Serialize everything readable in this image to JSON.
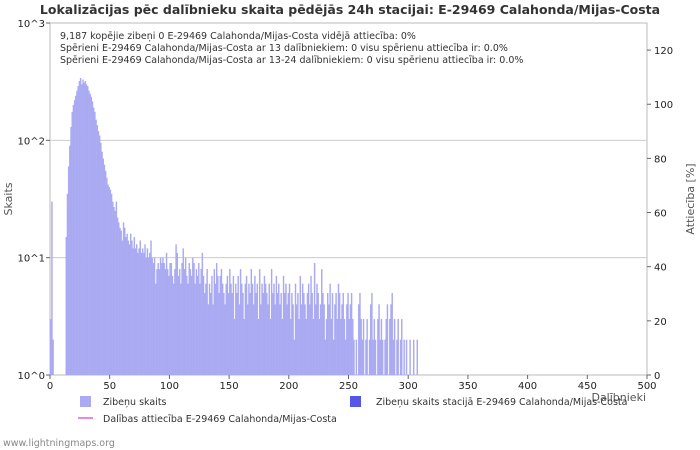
{
  "chart_data": {
    "type": "bar",
    "title": "Lokalizācijas pēc dalībnieku skaita pēdējās 24h stacijai: E-29469 Calahonda/Mijas-Costa",
    "xlabel": "Dalībnieki",
    "ylabel": "Skaits",
    "y2label": "Attiecība [%]",
    "y_scale": "log",
    "ylim": [
      1,
      1000
    ],
    "y_ticks": [
      {
        "value": 1,
        "label": "10^0"
      },
      {
        "value": 10,
        "label": "10^1"
      },
      {
        "value": 100,
        "label": "10^2"
      },
      {
        "value": 1000,
        "label": "10^3"
      }
    ],
    "xlim": [
      0,
      500
    ],
    "x_ticks": [
      0,
      50,
      100,
      150,
      200,
      250,
      300,
      350,
      400,
      450,
      500
    ],
    "y2lim": [
      0,
      130
    ],
    "y2_ticks": [
      0,
      20,
      40,
      60,
      80,
      100,
      120
    ],
    "info_lines": [
      "9,187 kopējie zibeņi       0 E-29469 Calahonda/Mijas-Costa       vidējā attiecība: 0%",
      "Spērieni E-29469 Calahonda/Mijas-Costa ar 13 dalībniekiem: 0       visu spērienu attiecība ir: 0.0%",
      "Spērieni E-29469 Calahonda/Mijas-Costa ar 13-24 dalībniekiem: 0       visu spērienu attiecība ir: 0.0%"
    ],
    "legend": [
      {
        "label": "Zibeņu skaits",
        "color": "#aaaaf2",
        "kind": "box"
      },
      {
        "label": "Zibeņu skaits stacijā E-29469 Calahonda/Mijas-Costa",
        "color": "#5555e6",
        "kind": "box"
      },
      {
        "label": "Dalības attiecība E-29469 Calahonda/Mijas-Costa",
        "color": "#e060e0",
        "kind": "line"
      }
    ],
    "series": [
      {
        "name": "Zibeņu skaits",
        "color": "#aaaaf2",
        "anchors": [
          [
            0,
            3
          ],
          [
            1,
            30
          ],
          [
            2,
            2
          ],
          [
            3,
            1
          ],
          [
            4,
            1
          ],
          [
            5,
            1
          ],
          [
            6,
            1
          ],
          [
            7,
            1
          ],
          [
            8,
            1
          ],
          [
            9,
            1
          ],
          [
            10,
            1
          ],
          [
            11,
            1
          ],
          [
            12,
            1
          ],
          [
            13,
            15
          ],
          [
            14,
            35
          ],
          [
            15,
            60
          ],
          [
            16,
            90
          ],
          [
            17,
            130
          ],
          [
            18,
            175
          ],
          [
            19,
            200
          ],
          [
            20,
            220
          ],
          [
            21,
            240
          ],
          [
            22,
            265
          ],
          [
            23,
            290
          ],
          [
            24,
            320
          ],
          [
            25,
            340
          ],
          [
            26,
            300
          ],
          [
            27,
            330
          ],
          [
            28,
            310
          ],
          [
            29,
            320
          ],
          [
            30,
            300
          ],
          [
            31,
            290
          ],
          [
            32,
            265
          ],
          [
            33,
            250
          ],
          [
            34,
            235
          ],
          [
            35,
            215
          ],
          [
            36,
            190
          ],
          [
            37,
            175
          ],
          [
            38,
            150
          ],
          [
            39,
            135
          ],
          [
            40,
            120
          ],
          [
            41,
            110
          ],
          [
            42,
            95
          ],
          [
            43,
            80
          ],
          [
            44,
            70
          ],
          [
            45,
            62
          ],
          [
            46,
            55
          ],
          [
            47,
            48
          ],
          [
            48,
            42
          ],
          [
            49,
            40
          ],
          [
            50,
            38
          ],
          [
            51,
            35
          ],
          [
            52,
            30
          ],
          [
            53,
            27
          ],
          [
            54,
            25
          ],
          [
            55,
            30
          ],
          [
            56,
            22
          ],
          [
            57,
            20
          ],
          [
            58,
            18
          ],
          [
            59,
            17
          ],
          [
            60,
            14
          ],
          [
            61,
            20
          ],
          [
            62,
            18
          ],
          [
            63,
            15
          ],
          [
            64,
            16
          ],
          [
            65,
            14
          ],
          [
            66,
            13
          ],
          [
            67,
            16
          ],
          [
            68,
            14
          ],
          [
            69,
            12
          ],
          [
            70,
            15
          ],
          [
            71,
            12
          ],
          [
            72,
            13
          ],
          [
            73,
            11
          ],
          [
            74,
            12
          ],
          [
            75,
            14
          ],
          [
            76,
            11
          ],
          [
            77,
            12
          ],
          [
            78,
            11
          ],
          [
            79,
            13
          ],
          [
            80,
            10
          ],
          [
            81,
            12
          ],
          [
            82,
            10
          ],
          [
            83,
            11
          ],
          [
            84,
            14
          ],
          [
            85,
            10
          ],
          [
            86,
            9
          ],
          [
            87,
            10
          ],
          [
            88,
            6
          ],
          [
            89,
            8
          ],
          [
            90,
            9
          ],
          [
            91,
            8
          ],
          [
            92,
            10
          ],
          [
            93,
            9
          ],
          [
            94,
            10
          ],
          [
            95,
            9
          ],
          [
            96,
            8
          ],
          [
            97,
            11
          ],
          [
            98,
            8
          ],
          [
            99,
            7
          ],
          [
            100,
            9
          ]
        ],
        "tail_profile": [
          9,
          7,
          6,
          8,
          13,
          11,
          7,
          8,
          6,
          9,
          12,
          8,
          10,
          7,
          6,
          9,
          8,
          7,
          10,
          9,
          6,
          8,
          7,
          9,
          6,
          8,
          11,
          7,
          5,
          6,
          8,
          4,
          6,
          5,
          7,
          4,
          8,
          6,
          9,
          7,
          5,
          7,
          8,
          6,
          5,
          4,
          6,
          7,
          5,
          8,
          6,
          5,
          7,
          3,
          6,
          5,
          7,
          4,
          8,
          6,
          5,
          3,
          6,
          7,
          4,
          6,
          5,
          8,
          6,
          4,
          7,
          5,
          6,
          3,
          8,
          4,
          6,
          5,
          7,
          6,
          5,
          4,
          6,
          3,
          8,
          5,
          6,
          4,
          7,
          5,
          6,
          4,
          5,
          3,
          7,
          5,
          6,
          4,
          5,
          6,
          3,
          5,
          4,
          2,
          6,
          4,
          5,
          3,
          7,
          4,
          6,
          5,
          4,
          3,
          5,
          6,
          4,
          7,
          5,
          3,
          9,
          4,
          6,
          5,
          3,
          4,
          8,
          5,
          4,
          2,
          3,
          5,
          4,
          6,
          3,
          5,
          2,
          4,
          5,
          3,
          6,
          5,
          3,
          4,
          5,
          3,
          2,
          4,
          5,
          3,
          4,
          5,
          3,
          2,
          1,
          2,
          1,
          4,
          5,
          3,
          2,
          3,
          1,
          2,
          3,
          1,
          2,
          4,
          5,
          2,
          3,
          2,
          1,
          3,
          4,
          2,
          3,
          2,
          1,
          2,
          3,
          4,
          1,
          3,
          4,
          5,
          2,
          3,
          1,
          2,
          3,
          1,
          2,
          3,
          1,
          2,
          1,
          2,
          1,
          1,
          2,
          1,
          1,
          2,
          1,
          1,
          2,
          1,
          1,
          1
        ]
      },
      {
        "name": "Zibeņu skaits stacijā E-29469 Calahonda/Mijas-Costa",
        "color": "#5555e6",
        "values": []
      }
    ]
  },
  "credit": "www.lightningmaps.org"
}
